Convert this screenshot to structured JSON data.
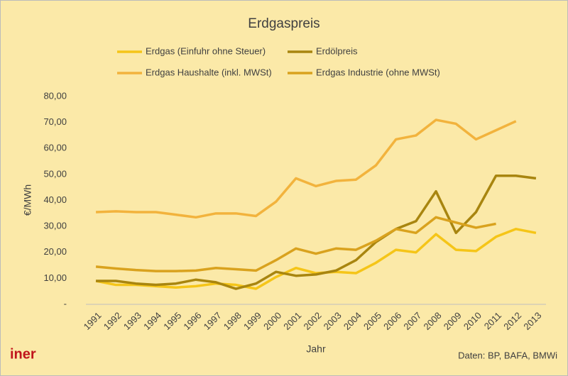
{
  "chart_data": {
    "type": "line",
    "title": "Erdgaspreis",
    "y_label": "€/MWh",
    "x_label": "Jahr",
    "source": "Daten: BP, BAFA, BMWi",
    "logo": "iner",
    "grid": false,
    "categories": [
      "1991",
      "1992",
      "1993",
      "1994",
      "1995",
      "1996",
      "1997",
      "1998",
      "1999",
      "2000",
      "2001",
      "2002",
      "2003",
      "2004",
      "2005",
      "2006",
      "2007",
      "2008",
      "2009",
      "2010",
      "2011",
      "2012",
      "2013"
    ],
    "ylim": [
      0,
      80
    ],
    "yticks": [
      {
        "value": 0,
        "label": "-"
      },
      {
        "value": 10,
        "label": "10,00"
      },
      {
        "value": 20,
        "label": "20,00"
      },
      {
        "value": 30,
        "label": "30,00"
      },
      {
        "value": 40,
        "label": "40,00"
      },
      {
        "value": 50,
        "label": "50,00"
      },
      {
        "value": 60,
        "label": "60,00"
      },
      {
        "value": 70,
        "label": "70,00"
      },
      {
        "value": 80,
        "label": "80,00"
      }
    ],
    "series": [
      {
        "name": "Erdgas (Einfuhr ohne Steuer)",
        "color": "#f5c518",
        "values": [
          9,
          7.5,
          7.5,
          7,
          6.5,
          7,
          8,
          7.5,
          6,
          10.5,
          14,
          12,
          12.5,
          12,
          16,
          21,
          20,
          27,
          21,
          20.5,
          26,
          29,
          27.5
        ]
      },
      {
        "name": "Erdölpreis",
        "color": "#a8850f",
        "values": [
          9,
          9,
          8,
          7.5,
          8,
          9.5,
          8.5,
          6,
          8,
          12.5,
          11,
          11.5,
          13,
          17,
          24,
          29,
          32,
          43.5,
          27.5,
          35.5,
          49.5,
          49.5,
          48.5
        ]
      },
      {
        "name": "Erdgas Haushalte (inkl. MWSt)",
        "color": "#f2b33d",
        "values": [
          35.5,
          35.8,
          35.5,
          35.5,
          34.5,
          33.5,
          35,
          35,
          34,
          39.5,
          48.5,
          45.5,
          47.5,
          48,
          53.5,
          63.5,
          65,
          71,
          69.5,
          63.5,
          67,
          70.5,
          null
        ]
      },
      {
        "name": "Erdgas Industrie (ohne MWSt)",
        "color": "#d9a21e",
        "values": [
          14.5,
          13.8,
          13.2,
          12.8,
          12.8,
          13,
          14,
          13.5,
          13,
          17,
          21.5,
          19.5,
          21.5,
          21,
          24.5,
          29,
          27.5,
          33.5,
          31.5,
          29.5,
          31,
          null,
          null
        ]
      }
    ]
  }
}
